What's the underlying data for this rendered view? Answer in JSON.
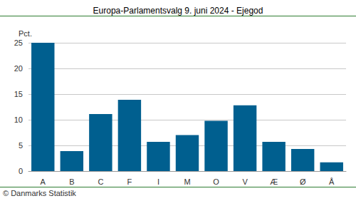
{
  "chart_data": {
    "type": "bar",
    "title": "Europa-Parlamentsvalg 9. juni 2024 - Ejegod",
    "y_label": "Pct.",
    "annotations": [
      "© Danmarks Statistik"
    ],
    "categories": [
      "A",
      "B",
      "C",
      "F",
      "I",
      "M",
      "O",
      "V",
      "Æ",
      "Ø",
      "Å"
    ],
    "values": [
      25.0,
      3.9,
      11.1,
      13.9,
      5.7,
      7.0,
      9.8,
      12.8,
      5.7,
      4.3,
      1.7
    ],
    "color": "#005f8f",
    "ylim": [
      0,
      25
    ],
    "yticks": [
      0,
      5,
      10,
      15,
      20,
      25
    ],
    "grid": true
  }
}
